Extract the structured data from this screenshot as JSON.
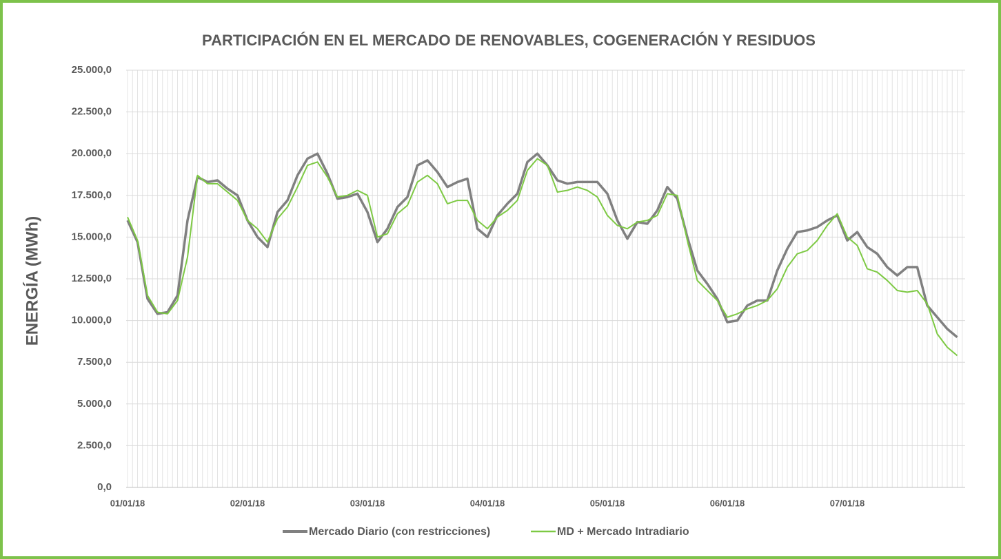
{
  "chart_data": {
    "type": "line",
    "title": "PARTICIPACIÓN EN EL MERCADO DE RENOVABLES, COGENERACIÓN Y RESIDUOS",
    "y_label": "ENERGÍA (MWh)",
    "categories": [
      "01/01/18",
      null,
      null,
      null,
      null,
      null,
      null,
      null,
      null,
      null,
      null,
      null,
      "02/01/18",
      null,
      null,
      null,
      null,
      null,
      null,
      null,
      null,
      null,
      null,
      null,
      "03/01/18",
      null,
      null,
      null,
      null,
      null,
      null,
      null,
      null,
      null,
      null,
      null,
      "04/01/18",
      null,
      null,
      null,
      null,
      null,
      null,
      null,
      null,
      null,
      null,
      null,
      "05/01/18",
      null,
      null,
      null,
      null,
      null,
      null,
      null,
      null,
      null,
      null,
      null,
      "06/01/18",
      null,
      null,
      null,
      null,
      null,
      null,
      null,
      null,
      null,
      null,
      null,
      "07/01/18",
      null,
      null,
      null,
      null,
      null,
      null,
      null,
      null,
      null,
      null,
      null
    ],
    "series": [
      {
        "name": "Mercado Diario (con restricciones)",
        "color": "#808080",
        "values": [
          16000,
          14700,
          11300,
          10400,
          10500,
          11500,
          16000,
          18600,
          18300,
          18400,
          17900,
          17500,
          16000,
          15000,
          14400,
          16500,
          17200,
          18700,
          19700,
          20000,
          18800,
          17300,
          17400,
          17600,
          16500,
          14700,
          15500,
          16800,
          17400,
          19300,
          19600,
          18900,
          18000,
          18300,
          18500,
          15500,
          15000,
          16300,
          17000,
          17600,
          19500,
          20000,
          19300,
          18400,
          18200,
          18300,
          18300,
          18300,
          17600,
          16000,
          14900,
          15900,
          15800,
          16600,
          18000,
          17300,
          15000,
          13000,
          12200,
          11300,
          9900,
          10000,
          10900,
          11200,
          11200,
          13000,
          14300,
          15300,
          15400,
          15600,
          16000,
          16300,
          14800,
          15300,
          14400,
          14000,
          13200,
          12700,
          13200,
          13200,
          10900,
          10200,
          9500,
          9000
        ]
      },
      {
        "name": "MD + Mercado Intradiario",
        "color": "#7dc943",
        "values": [
          16200,
          14800,
          11500,
          10500,
          10400,
          11200,
          13800,
          18700,
          18200,
          18200,
          17700,
          17200,
          16000,
          15500,
          14700,
          16100,
          16800,
          18000,
          19300,
          19500,
          18600,
          17400,
          17500,
          17800,
          17500,
          15000,
          15200,
          16400,
          16900,
          18300,
          18700,
          18200,
          17000,
          17200,
          17200,
          16000,
          15500,
          16200,
          16600,
          17200,
          19000,
          19700,
          19300,
          17700,
          17800,
          18000,
          17800,
          17400,
          16300,
          15700,
          15500,
          15900,
          16000,
          16300,
          17600,
          17500,
          14800,
          12400,
          11800,
          11200,
          10200,
          10400,
          10700,
          10900,
          11200,
          11900,
          13200,
          14000,
          14200,
          14800,
          15700,
          16400,
          15000,
          14500,
          13100,
          12900,
          12400,
          11800,
          11700,
          11800,
          11000,
          9200,
          8400,
          7900
        ]
      }
    ],
    "ylim": [
      0,
      25000
    ],
    "yticks": [
      {
        "value": 0,
        "label": "0,0"
      },
      {
        "value": 2500,
        "label": "2.500,0"
      },
      {
        "value": 5000,
        "label": "5.000,0"
      },
      {
        "value": 7500,
        "label": "7.500,0"
      },
      {
        "value": 10000,
        "label": "10.000,0"
      },
      {
        "value": 12500,
        "label": "12.500,0"
      },
      {
        "value": 15000,
        "label": "15.000,0"
      },
      {
        "value": 17500,
        "label": "17.500,0"
      },
      {
        "value": 20000,
        "label": "20.000,0"
      },
      {
        "value": 22500,
        "label": "22.500,0"
      },
      {
        "value": 25000,
        "label": "25.000,0"
      }
    ],
    "grid": true,
    "legend": "bottom"
  }
}
